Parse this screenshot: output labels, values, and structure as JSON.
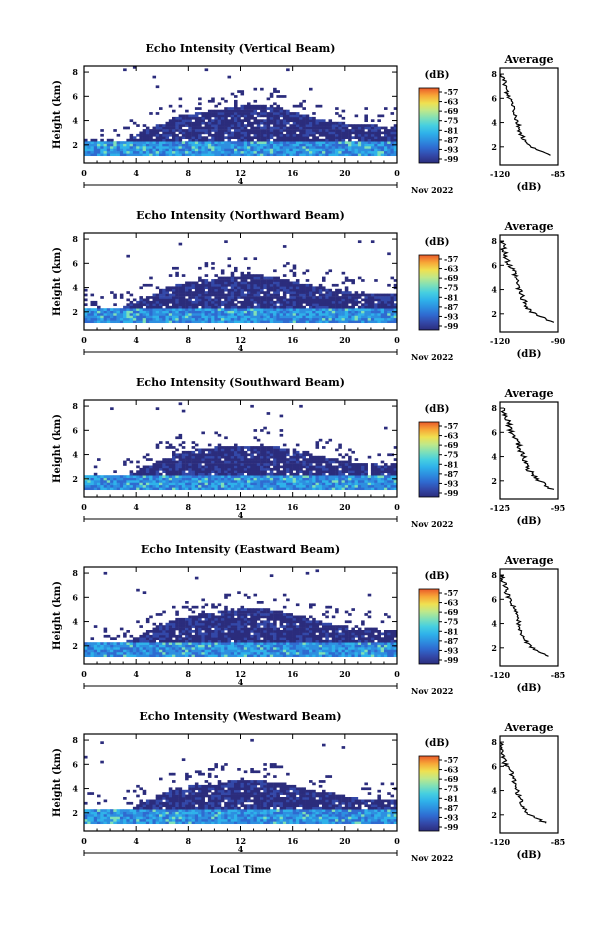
{
  "colorbar": {
    "unit": "(dB)",
    "ticks": [
      "-57",
      "-63",
      "-69",
      "-75",
      "-81",
      "-87",
      "-93",
      "-99"
    ],
    "colors": [
      "#2b2c7c",
      "#3348a8",
      "#2f6ad0",
      "#2d8fe0",
      "#2fb2ea",
      "#46cfe0",
      "#7fe0b8",
      "#bfe88a",
      "#f0e050",
      "#f7a637",
      "#ea5a2a"
    ]
  },
  "axes": {
    "xlabel": "Local Time",
    "ylabel": "Height (km)",
    "date_label": "Nov 2022",
    "x_ticks": [
      "0",
      "4",
      "8",
      "12",
      "16",
      "20",
      "0"
    ],
    "y_ticks": [
      "2",
      "4",
      "6",
      "8"
    ],
    "day_marker": "4",
    "avg_xlabel": "(dB)"
  },
  "chart_data": [
    {
      "type": "heatmap",
      "title": "Echo Intensity (Vertical Beam)",
      "x": [
        0,
        24
      ],
      "y": [
        0.5,
        8.5
      ],
      "xlim": [
        0,
        24
      ],
      "ylim": [
        0.5,
        8.5
      ],
      "cloud_top_km": [
        [
          0,
          2.2
        ],
        [
          3,
          2.2
        ],
        [
          5,
          3.2
        ],
        [
          7,
          4.2
        ],
        [
          9,
          4.6
        ],
        [
          11,
          5.0
        ],
        [
          13,
          5.2
        ],
        [
          15,
          5.0
        ],
        [
          17,
          4.3
        ],
        [
          19,
          3.8
        ],
        [
          21,
          3.6
        ],
        [
          24,
          3.4
        ]
      ],
      "avg_profile": {
        "title": "Average",
        "xlim": [
          -120,
          -85
        ],
        "x_ticks": [
          "-120",
          "-85"
        ],
        "ylim": [
          0.5,
          8.5
        ],
        "profile": [
          [
            -119,
            8.0
          ],
          [
            -117,
            7.2
          ],
          [
            -116,
            6.4
          ],
          [
            -112,
            5.5
          ],
          [
            -110,
            4.2
          ],
          [
            -107,
            3.0
          ],
          [
            -104,
            2.2
          ],
          [
            -97,
            1.8
          ],
          [
            -88,
            1.1
          ]
        ]
      }
    },
    {
      "type": "heatmap",
      "title": "Echo Intensity (Northward Beam)",
      "x": [
        0,
        24
      ],
      "y": [
        0.5,
        8.5
      ],
      "xlim": [
        0,
        24
      ],
      "ylim": [
        0.5,
        8.5
      ],
      "cloud_top_km": [
        [
          0,
          2.2
        ],
        [
          3,
          2.3
        ],
        [
          5,
          3.2
        ],
        [
          7,
          4.2
        ],
        [
          9,
          4.5
        ],
        [
          11,
          4.8
        ],
        [
          13,
          5.0
        ],
        [
          15,
          4.7
        ],
        [
          17,
          4.2
        ],
        [
          19,
          3.8
        ],
        [
          21,
          3.5
        ],
        [
          24,
          3.3
        ]
      ],
      "avg_profile": {
        "title": "Average",
        "xlim": [
          -120,
          -90
        ],
        "x_ticks": [
          "-120",
          "-90"
        ],
        "ylim": [
          0.5,
          8.5
        ],
        "profile": [
          [
            -119,
            8.0
          ],
          [
            -118,
            7.1
          ],
          [
            -116,
            6.2
          ],
          [
            -113,
            5.5
          ],
          [
            -110,
            4.0
          ],
          [
            -107,
            2.9
          ],
          [
            -104,
            2.2
          ],
          [
            -98,
            1.7
          ],
          [
            -92,
            1.2
          ]
        ]
      }
    },
    {
      "type": "heatmap",
      "title": "Echo Intensity (Southward Beam)",
      "x": [
        0,
        24
      ],
      "y": [
        0.5,
        8.5
      ],
      "xlim": [
        0,
        24
      ],
      "ylim": [
        0.5,
        8.5
      ],
      "cloud_top_km": [
        [
          0,
          2.0
        ],
        [
          3,
          2.1
        ],
        [
          5,
          3.0
        ],
        [
          7,
          4.0
        ],
        [
          9,
          4.4
        ],
        [
          11,
          4.6
        ],
        [
          13,
          4.7
        ],
        [
          15,
          4.5
        ],
        [
          17,
          4.0
        ],
        [
          19,
          3.6
        ],
        [
          21,
          3.2
        ],
        [
          24,
          3.0
        ]
      ],
      "avg_profile": {
        "title": "Average",
        "xlim": [
          -125,
          -95
        ],
        "x_ticks": [
          "-125",
          "-95"
        ],
        "ylim": [
          0.5,
          8.5
        ],
        "profile": [
          [
            -124,
            7.9
          ],
          [
            -121,
            6.9
          ],
          [
            -119,
            6.0
          ],
          [
            -116,
            5.3
          ],
          [
            -113,
            4.0
          ],
          [
            -110,
            2.9
          ],
          [
            -106,
            2.2
          ],
          [
            -101,
            1.6
          ],
          [
            -96,
            1.0
          ]
        ]
      }
    },
    {
      "type": "heatmap",
      "title": "Echo Intensity (Eastward Beam)",
      "x": [
        0,
        24
      ],
      "y": [
        0.5,
        8.5
      ],
      "xlim": [
        0,
        24
      ],
      "ylim": [
        0.5,
        8.5
      ],
      "cloud_top_km": [
        [
          0,
          2.1
        ],
        [
          3,
          2.2
        ],
        [
          5,
          3.1
        ],
        [
          7,
          4.1
        ],
        [
          9,
          4.5
        ],
        [
          11,
          4.8
        ],
        [
          13,
          5.0
        ],
        [
          15,
          4.8
        ],
        [
          17,
          4.2
        ],
        [
          19,
          3.7
        ],
        [
          21,
          3.4
        ],
        [
          24,
          3.2
        ]
      ],
      "avg_profile": {
        "title": "Average",
        "xlim": [
          -120,
          -85
        ],
        "x_ticks": [
          "-120",
          "-85"
        ],
        "ylim": [
          0.5,
          8.5
        ],
        "profile": [
          [
            -119,
            7.9
          ],
          [
            -117,
            7.0
          ],
          [
            -115,
            6.2
          ],
          [
            -112,
            5.4
          ],
          [
            -109,
            4.1
          ],
          [
            -106,
            2.9
          ],
          [
            -102,
            2.1
          ],
          [
            -95,
            1.6
          ],
          [
            -88,
            1.0
          ]
        ]
      }
    },
    {
      "type": "heatmap",
      "title": "Echo Intensity (Westward Beam)",
      "x": [
        0,
        24
      ],
      "y": [
        0.5,
        8.5
      ],
      "xlim": [
        0,
        24
      ],
      "ylim": [
        0.5,
        8.5
      ],
      "cloud_top_km": [
        [
          0,
          2.0
        ],
        [
          3,
          2.1
        ],
        [
          5,
          3.0
        ],
        [
          7,
          3.9
        ],
        [
          9,
          4.3
        ],
        [
          11,
          4.5
        ],
        [
          13,
          4.6
        ],
        [
          15,
          4.4
        ],
        [
          17,
          3.9
        ],
        [
          19,
          3.5
        ],
        [
          21,
          3.1
        ],
        [
          24,
          2.9
        ]
      ],
      "avg_profile": {
        "title": "Average",
        "xlim": [
          -120,
          -85
        ],
        "x_ticks": [
          "-120",
          "-85"
        ],
        "ylim": [
          0.5,
          8.5
        ],
        "profile": [
          [
            -120,
            8.0
          ],
          [
            -118,
            7.0
          ],
          [
            -117,
            6.2
          ],
          [
            -113,
            5.5
          ],
          [
            -110,
            4.1
          ],
          [
            -107,
            2.9
          ],
          [
            -103,
            2.1
          ],
          [
            -96,
            1.6
          ],
          [
            -88,
            1.0
          ]
        ]
      }
    }
  ]
}
